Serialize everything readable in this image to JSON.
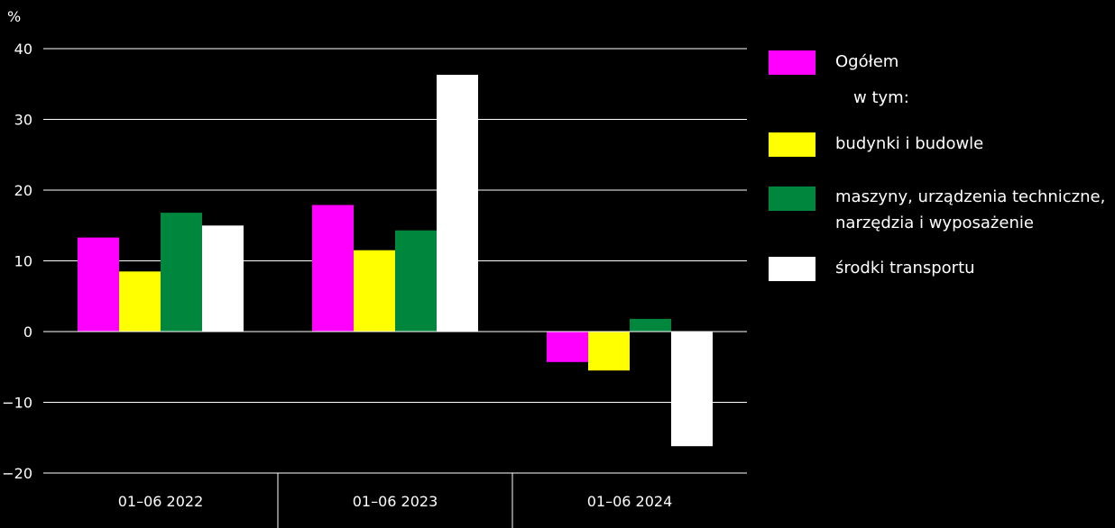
{
  "chart_data": {
    "type": "bar",
    "unit_label": "%",
    "categories": [
      "01–06 2022",
      "01–06 2023",
      "01–06 2024"
    ],
    "series": [
      {
        "name": "Ogółem",
        "color": "#ff00ff",
        "values": [
          13.3,
          17.9,
          -4.3
        ]
      },
      {
        "name": "budynki i budowle",
        "color": "#ffff00",
        "values": [
          8.5,
          11.5,
          -5.5
        ]
      },
      {
        "name": "maszyny, urządzenia techniczne, narzędzia i wyposażenie",
        "color": "#00873e",
        "values": [
          16.8,
          14.3,
          1.8
        ]
      },
      {
        "name": "środki transportu",
        "color": "#ffffff",
        "values": [
          15.0,
          36.3,
          -16.2
        ]
      }
    ],
    "ylim": [
      -20,
      40
    ],
    "yticks": [
      "40",
      "30",
      "20",
      "10",
      "0",
      "−10",
      "−20"
    ],
    "ytick_values": [
      40,
      30,
      20,
      10,
      0,
      -10,
      -20
    ],
    "grid": true,
    "legend_position": "right"
  },
  "legend": {
    "items": [
      {
        "label": "Ogółem",
        "color": "#ff00ff"
      },
      {
        "label": "w tym:"
      },
      {
        "label": "budynki i budowle",
        "color": "#ffff00"
      },
      {
        "label_line1": "maszyny, urządzenia techniczne,",
        "label_line2": "narzędzia i wyposażenie",
        "color": "#00873e"
      },
      {
        "label": "środki transportu",
        "color": "#ffffff"
      }
    ]
  }
}
